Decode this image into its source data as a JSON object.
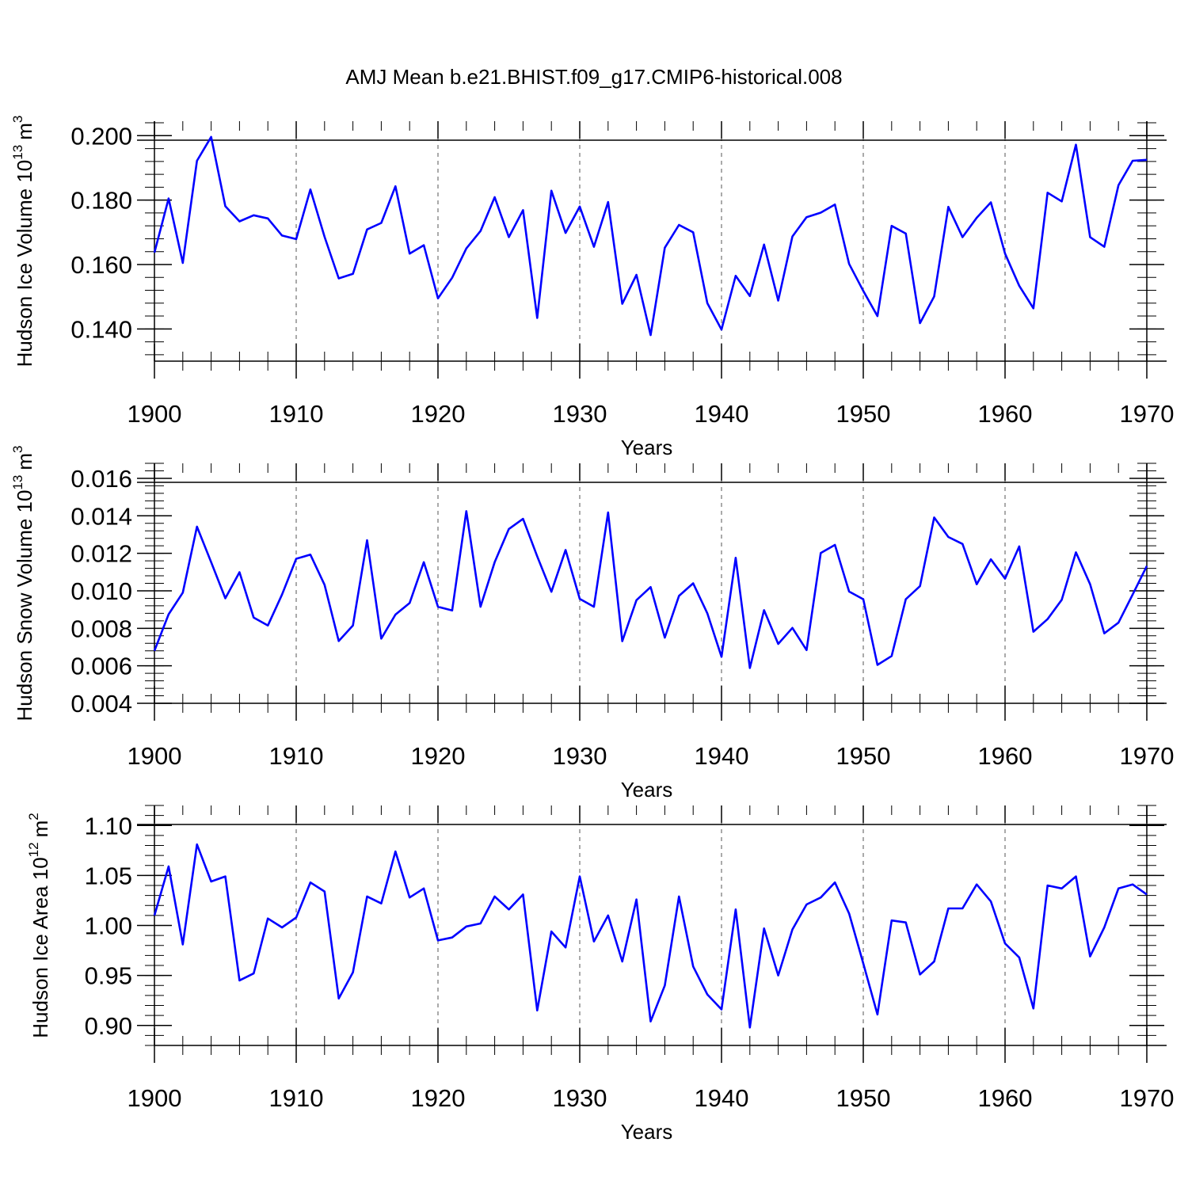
{
  "title": "AMJ Mean b.e21.BHIST.f09_g17.CMIP6-historical.008",
  "colors": {
    "line": "#0000ff",
    "axis": "#000000",
    "grid": "#555555"
  },
  "chart_data": [
    {
      "type": "line",
      "name": "ice-volume",
      "ylabel_main": "Hudson Ice Volume 10",
      "ylabel_exp": "13",
      "ylabel_unit": "m",
      "ylabel_unit_exp": "3",
      "xlabel": "Years",
      "xlim": [
        1900,
        1970
      ],
      "ylim": [
        0.13,
        0.2045
      ],
      "yticks": [
        0.14,
        0.16,
        0.18,
        0.2
      ],
      "ytick_labels": [
        "0.140",
        "0.160",
        "0.180",
        "0.200"
      ],
      "xticks": [
        1900,
        1910,
        1920,
        1930,
        1940,
        1950,
        1960,
        1970
      ],
      "xtick_labels": [
        "1900",
        "1910",
        "1920",
        "1930",
        "1940",
        "1950",
        "1960",
        "1970"
      ],
      "grid_x": [
        1910,
        1920,
        1930,
        1940,
        1950,
        1960
      ],
      "x_start": 1900,
      "values": [
        0.1637,
        0.1805,
        0.1605,
        0.1922,
        0.1996,
        0.1781,
        0.1734,
        0.1753,
        0.1743,
        0.169,
        0.1679,
        0.1833,
        0.1686,
        0.1557,
        0.1571,
        0.1709,
        0.1729,
        0.1843,
        0.1634,
        0.166,
        0.1495,
        0.1559,
        0.165,
        0.1704,
        0.1809,
        0.1685,
        0.1769,
        0.1434,
        0.1829,
        0.1698,
        0.178,
        0.1655,
        0.1794,
        0.1478,
        0.1568,
        0.1381,
        0.1652,
        0.1723,
        0.17,
        0.148,
        0.1398,
        0.1565,
        0.1502,
        0.1662,
        0.1488,
        0.1687,
        0.1747,
        0.1761,
        0.1786,
        0.1602,
        0.1518,
        0.144,
        0.172,
        0.1696,
        0.1418,
        0.1501,
        0.1779,
        0.1685,
        0.1745,
        0.1793,
        0.1634,
        0.1534,
        0.1464,
        0.1823,
        0.1796,
        0.1972,
        0.1685,
        0.1655,
        0.1846,
        0.1922,
        0.1925
      ]
    },
    {
      "type": "line",
      "name": "snow-volume",
      "ylabel_main": "Hudson Snow Volume 10",
      "ylabel_exp": "13",
      "ylabel_unit": "m",
      "ylabel_unit_exp": "3",
      "xlabel": "Years",
      "xlim": [
        1900,
        1970
      ],
      "ylim": [
        0.004,
        0.0168
      ],
      "yticks": [
        0.004,
        0.006,
        0.008,
        0.01,
        0.012,
        0.014,
        0.016
      ],
      "ytick_labels": [
        "0.004",
        "0.006",
        "0.008",
        "0.010",
        "0.012",
        "0.014",
        "0.016"
      ],
      "xticks": [
        1900,
        1910,
        1920,
        1930,
        1940,
        1950,
        1960,
        1970
      ],
      "xtick_labels": [
        "1900",
        "1910",
        "1920",
        "1930",
        "1940",
        "1950",
        "1960",
        "1970"
      ],
      "grid_x": [
        1910,
        1920,
        1930,
        1940,
        1950,
        1960
      ],
      "x_start": 1900,
      "values": [
        0.0068,
        0.00875,
        0.0099,
        0.01342,
        0.01153,
        0.0096,
        0.01099,
        0.00857,
        0.00815,
        0.0098,
        0.01171,
        0.01193,
        0.01032,
        0.00732,
        0.00815,
        0.0127,
        0.00745,
        0.00873,
        0.00935,
        0.01153,
        0.00915,
        0.00895,
        0.01425,
        0.00915,
        0.01153,
        0.0133,
        0.01384,
        0.01184,
        0.00995,
        0.01218,
        0.00957,
        0.00915,
        0.01418,
        0.00731,
        0.0095,
        0.0102,
        0.0075,
        0.00973,
        0.0104,
        0.0088,
        0.00648,
        0.01176,
        0.00588,
        0.00897,
        0.00717,
        0.00802,
        0.00684,
        0.01202,
        0.01245,
        0.00996,
        0.00955,
        0.00605,
        0.00652,
        0.00955,
        0.01025,
        0.01391,
        0.01287,
        0.0125,
        0.01035,
        0.01168,
        0.01065,
        0.01237,
        0.00782,
        0.00849,
        0.00952,
        0.01205,
        0.01035,
        0.00773,
        0.0083,
        0.0098,
        0.01132
      ]
    },
    {
      "type": "line",
      "name": "ice-area",
      "ylabel_main": "Hudson Ice Area 10",
      "ylabel_exp": "12",
      "ylabel_unit": "m",
      "ylabel_unit_exp": "2",
      "xlabel": "Years",
      "xlim": [
        1900,
        1970
      ],
      "ylim": [
        0.88,
        1.12
      ],
      "yticks": [
        0.9,
        0.95,
        1.0,
        1.05,
        1.1
      ],
      "ytick_labels": [
        "0.90",
        "0.95",
        "1.00",
        "1.05",
        "1.10"
      ],
      "xticks": [
        1900,
        1910,
        1920,
        1930,
        1940,
        1950,
        1960,
        1970
      ],
      "xtick_labels": [
        "1900",
        "1910",
        "1920",
        "1930",
        "1940",
        "1950",
        "1960",
        "1970"
      ],
      "grid_x": [
        1910,
        1920,
        1930,
        1940,
        1950,
        1960
      ],
      "x_start": 1900,
      "values": [
        1.01,
        1.059,
        0.981,
        1.081,
        1.044,
        1.049,
        0.945,
        0.952,
        1.007,
        0.998,
        1.008,
        1.043,
        1.034,
        0.927,
        0.953,
        1.029,
        1.022,
        1.074,
        1.028,
        1.037,
        0.985,
        0.988,
        0.999,
        1.002,
        1.029,
        1.016,
        1.031,
        0.915,
        0.994,
        0.978,
        1.049,
        0.984,
        1.01,
        0.964,
        1.026,
        0.904,
        0.94,
        1.029,
        0.959,
        0.931,
        0.916,
        1.016,
        0.898,
        0.997,
        0.95,
        0.996,
        1.021,
        1.028,
        1.043,
        1.012,
        0.962,
        0.911,
        1.005,
        1.003,
        0.951,
        0.964,
        1.017,
        1.017,
        1.041,
        1.024,
        0.982,
        0.968,
        0.917,
        1.04,
        1.037,
        1.049,
        0.969,
        0.998,
        1.037,
        1.041,
        1.031
      ]
    }
  ]
}
